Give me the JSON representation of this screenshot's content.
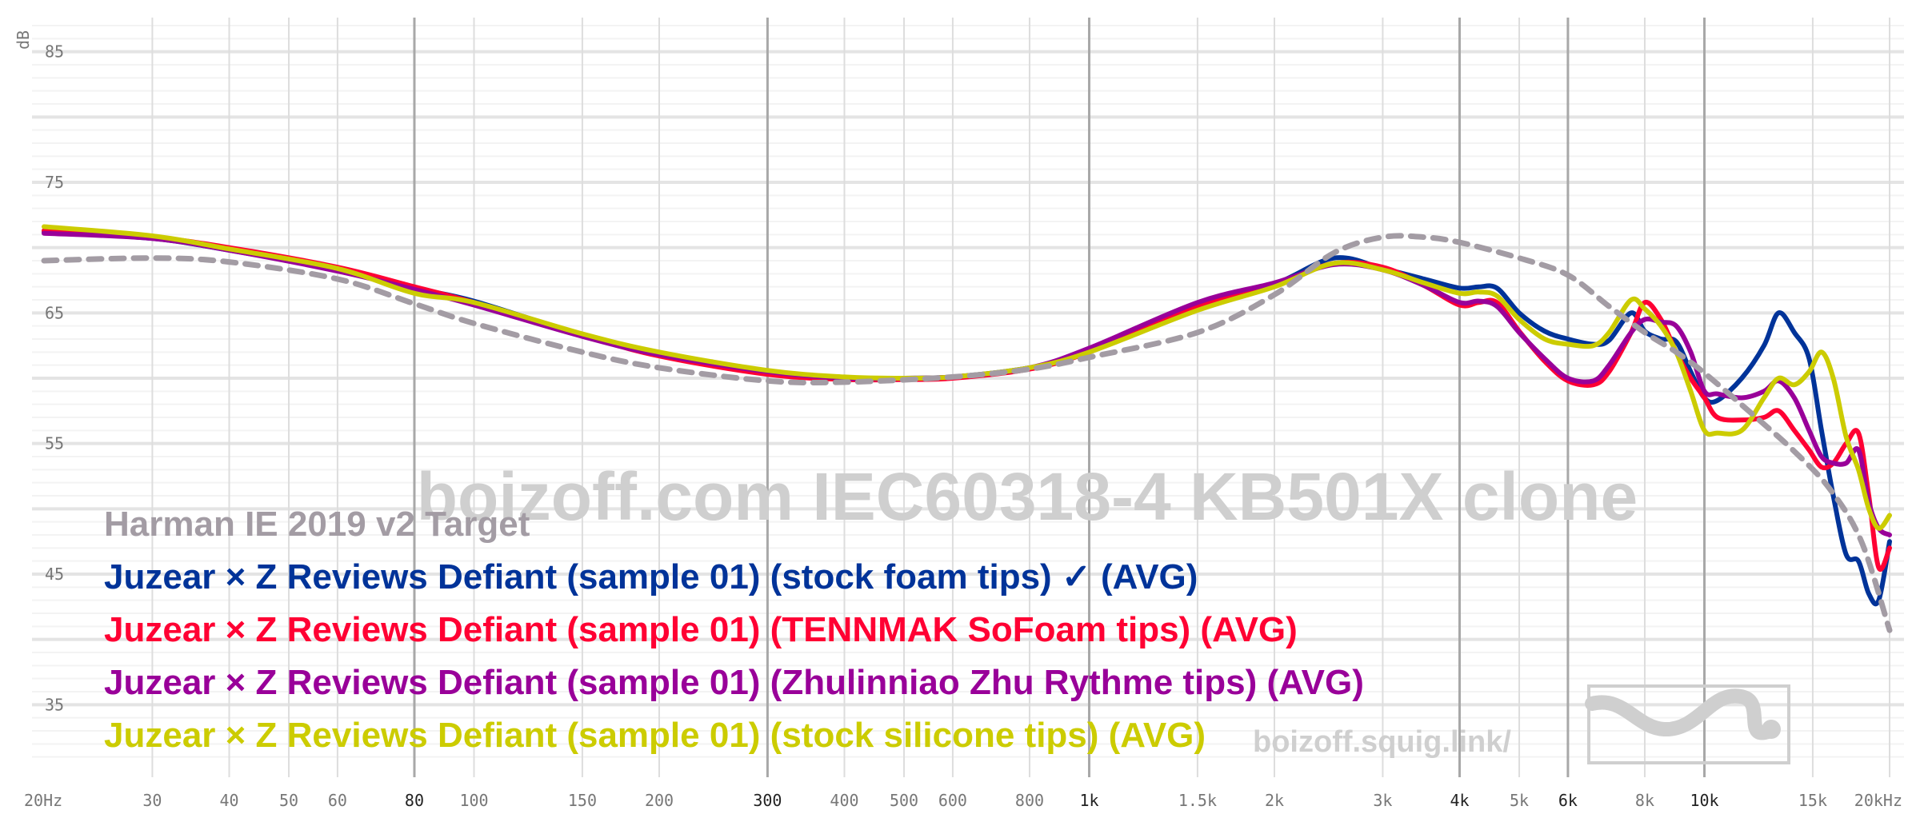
{
  "chart_data": {
    "type": "line",
    "x_scale": "log",
    "xlim": [
      20,
      20000
    ],
    "ylim": [
      30,
      87
    ],
    "ylabel": "dB",
    "y_ticks": [
      35,
      45,
      55,
      65,
      75,
      85
    ],
    "x_ticks": [
      {
        "value": 20,
        "label": "20Hz",
        "bold": false
      },
      {
        "value": 30,
        "label": "30",
        "bold": false
      },
      {
        "value": 40,
        "label": "40",
        "bold": false
      },
      {
        "value": 50,
        "label": "50",
        "bold": false
      },
      {
        "value": 60,
        "label": "60",
        "bold": false
      },
      {
        "value": 80,
        "label": "80",
        "bold": true
      },
      {
        "value": 100,
        "label": "100",
        "bold": false
      },
      {
        "value": 150,
        "label": "150",
        "bold": false
      },
      {
        "value": 200,
        "label": "200",
        "bold": false
      },
      {
        "value": 300,
        "label": "300",
        "bold": true
      },
      {
        "value": 400,
        "label": "400",
        "bold": false
      },
      {
        "value": 500,
        "label": "500",
        "bold": false
      },
      {
        "value": 600,
        "label": "600",
        "bold": false
      },
      {
        "value": 800,
        "label": "800",
        "bold": false
      },
      {
        "value": 1000,
        "label": "1k",
        "bold": true
      },
      {
        "value": 1500,
        "label": "1.5k",
        "bold": false
      },
      {
        "value": 2000,
        "label": "2k",
        "bold": false
      },
      {
        "value": 3000,
        "label": "3k",
        "bold": false
      },
      {
        "value": 4000,
        "label": "4k",
        "bold": true
      },
      {
        "value": 5000,
        "label": "5k",
        "bold": false
      },
      {
        "value": 6000,
        "label": "6k",
        "bold": true
      },
      {
        "value": 8000,
        "label": "8k",
        "bold": false
      },
      {
        "value": 10000,
        "label": "10k",
        "bold": true
      },
      {
        "value": 15000,
        "label": "15k",
        "bold": false
      },
      {
        "value": 20000,
        "label": "20kHz",
        "bold": false
      }
    ],
    "watermark": "boizoff.com IEC60318-4 KB501X clone",
    "watermark_url": "boizoff.squig.link/",
    "series": [
      {
        "name": "Harman IE 2019 v2 Target",
        "color": "#a39ca4",
        "dashed": true,
        "x": [
          20,
          30,
          40,
          60,
          80,
          100,
          150,
          200,
          300,
          400,
          600,
          800,
          1000,
          1500,
          2000,
          2500,
          3000,
          3500,
          4000,
          5000,
          6000,
          7000,
          8000,
          9000,
          10000,
          12000,
          14000,
          16000,
          18000,
          20000
        ],
        "y": [
          69.0,
          69.2,
          68.9,
          67.6,
          65.7,
          64.2,
          62.0,
          60.8,
          59.8,
          59.7,
          60.1,
          60.7,
          61.6,
          63.5,
          66.4,
          69.6,
          70.8,
          70.8,
          70.4,
          69.2,
          67.9,
          65.5,
          63.5,
          62.0,
          60.4,
          57.2,
          54.4,
          51.5,
          47.5,
          40.7
        ]
      },
      {
        "name": "Juzear × Z Reviews Defiant (sample 01) (stock foam tips) ✓ (AVG)",
        "color": "#003399",
        "dashed": false,
        "x": [
          20,
          30,
          40,
          60,
          80,
          100,
          150,
          200,
          300,
          400,
          500,
          600,
          800,
          1000,
          1500,
          2000,
          2500,
          3000,
          3500,
          4000,
          4300,
          4600,
          5000,
          5500,
          6000,
          6600,
          7000,
          7600,
          8000,
          8500,
          9000,
          9500,
          10000,
          10500,
          11500,
          12500,
          13200,
          14000,
          14800,
          15500,
          16200,
          17000,
          17800,
          18500,
          19200,
          20000
        ],
        "y": [
          71.2,
          70.7,
          69.8,
          68.3,
          66.9,
          65.9,
          63.3,
          61.8,
          60.5,
          60.0,
          60.0,
          60.1,
          60.8,
          62.0,
          65.5,
          67.2,
          69.2,
          68.4,
          67.6,
          66.9,
          67.0,
          66.9,
          65.0,
          63.6,
          63.0,
          62.6,
          62.9,
          65.0,
          63.6,
          63.0,
          62.8,
          60.5,
          58.5,
          58.3,
          60.0,
          62.5,
          65.0,
          63.5,
          61.5,
          56.0,
          51.0,
          46.5,
          46.0,
          43.5,
          43.0,
          47.5
        ]
      },
      {
        "name": "Juzear × Z Reviews Defiant (sample 01) (TENNMAK SoFoam tips) (AVG)",
        "color": "#ff0033",
        "dashed": false,
        "x": [
          20,
          30,
          40,
          60,
          80,
          100,
          150,
          200,
          300,
          400,
          500,
          600,
          800,
          1000,
          1500,
          2000,
          2500,
          3000,
          3500,
          4000,
          4300,
          4600,
          5000,
          5500,
          6000,
          6600,
          7000,
          7600,
          8000,
          8500,
          9000,
          9500,
          10000,
          10500,
          11500,
          12500,
          13200,
          14000,
          14800,
          15500,
          16200,
          17000,
          17800,
          18500,
          19200,
          20000
        ],
        "y": [
          71.3,
          70.8,
          70.0,
          68.5,
          67.0,
          65.8,
          63.3,
          61.7,
          60.3,
          59.9,
          59.9,
          60.0,
          60.7,
          62.0,
          65.5,
          67.2,
          68.8,
          68.5,
          67.1,
          65.6,
          65.8,
          65.8,
          63.6,
          61.3,
          59.8,
          59.5,
          60.5,
          63.5,
          65.8,
          64.5,
          62.0,
          60.0,
          58.5,
          57.0,
          56.8,
          57.0,
          57.5,
          56.0,
          54.5,
          53.2,
          53.5,
          55.0,
          55.8,
          51.0,
          45.5,
          47.0
        ]
      },
      {
        "name": "Juzear × Z Reviews Defiant (sample 01) (Zhulinniao Zhu Rythme tips) (AVG)",
        "color": "#990099",
        "dashed": false,
        "x": [
          20,
          30,
          40,
          60,
          80,
          100,
          150,
          200,
          300,
          400,
          500,
          600,
          800,
          1000,
          1500,
          2000,
          2500,
          3000,
          3500,
          4000,
          4300,
          4600,
          5000,
          5500,
          6000,
          6600,
          7000,
          7600,
          8000,
          8500,
          9000,
          9500,
          10000,
          10500,
          11500,
          12500,
          13200,
          14000,
          14800,
          15500,
          16200,
          17000,
          17800,
          18500,
          19200,
          20000
        ],
        "y": [
          71.1,
          70.7,
          69.8,
          68.2,
          66.8,
          65.6,
          63.2,
          61.8,
          60.5,
          60.0,
          60.0,
          60.1,
          60.8,
          62.3,
          65.8,
          67.3,
          68.7,
          68.3,
          67.1,
          65.8,
          65.9,
          65.5,
          63.5,
          61.5,
          60.0,
          59.8,
          61.0,
          63.5,
          64.5,
          64.3,
          64.0,
          62.0,
          59.0,
          58.8,
          58.5,
          59.0,
          59.8,
          58.5,
          56.0,
          54.0,
          53.5,
          53.5,
          54.5,
          50.5,
          48.5,
          48.0
        ]
      },
      {
        "name": "Juzear × Z Reviews Defiant (sample 01) (stock silicone tips) (AVG)",
        "color": "#cccc00",
        "dashed": false,
        "x": [
          20,
          30,
          40,
          60,
          80,
          100,
          150,
          200,
          300,
          400,
          500,
          600,
          800,
          1000,
          1500,
          2000,
          2500,
          3000,
          3500,
          4000,
          4300,
          4600,
          5000,
          5500,
          6000,
          6600,
          7000,
          7600,
          8000,
          8500,
          9000,
          9500,
          10000,
          10500,
          11500,
          12500,
          13200,
          14000,
          14800,
          15500,
          16200,
          17000,
          17800,
          18500,
          19200,
          20000
        ],
        "y": [
          71.6,
          70.9,
          69.9,
          68.4,
          66.5,
          65.8,
          63.4,
          62.0,
          60.6,
          60.1,
          60.0,
          60.1,
          60.8,
          62.0,
          65.2,
          67.0,
          68.8,
          68.3,
          67.3,
          66.5,
          66.6,
          66.3,
          64.5,
          63.0,
          62.6,
          62.5,
          63.5,
          66.0,
          65.3,
          64.0,
          62.0,
          59.0,
          56.0,
          55.8,
          56.0,
          58.5,
          60.0,
          59.5,
          60.5,
          62.0,
          60.0,
          55.5,
          53.0,
          50.0,
          48.5,
          49.5
        ]
      }
    ]
  }
}
